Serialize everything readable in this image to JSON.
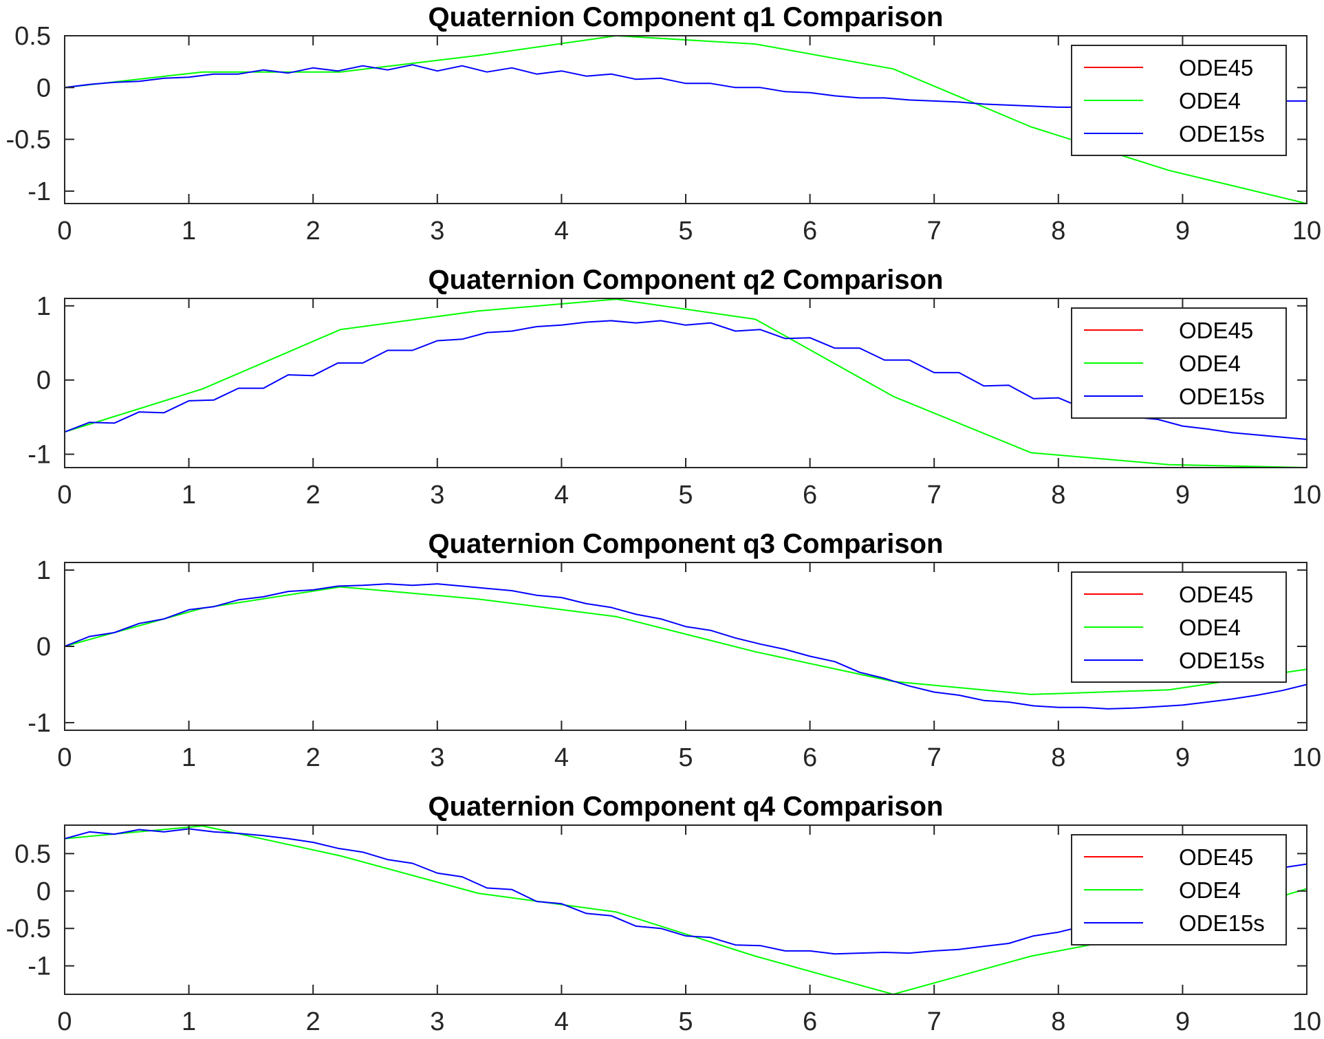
{
  "colors": {
    "ODE45": "#ff0000",
    "ODE4": "#00ff00",
    "ODE15s": "#0000ff"
  },
  "chart_data": [
    {
      "type": "line",
      "title": "Quaternion Component q1 Comparison",
      "xlim": [
        0,
        10
      ],
      "ylim": [
        -1.12,
        0.5
      ],
      "xticks": [
        "0",
        "1",
        "2",
        "3",
        "4",
        "5",
        "6",
        "7",
        "8",
        "9",
        "10"
      ],
      "yticks": [
        {
          "v": 0.5,
          "label": "0.5"
        },
        {
          "v": 0,
          "label": "0"
        },
        {
          "v": -0.5,
          "label": "-0.5"
        },
        {
          "v": -1,
          "label": "-1"
        }
      ],
      "legend": [
        "ODE45",
        "ODE4",
        "ODE15s"
      ],
      "legend_position": "top-right",
      "series": [
        {
          "name": "ODE45",
          "color": "#ff0000",
          "x": [],
          "y": []
        },
        {
          "name": "ODE4",
          "color": "#00ff00",
          "x": [
            0,
            1.11,
            2.22,
            3.33,
            4.44,
            5.56,
            6.67,
            7.78,
            8.89,
            10
          ],
          "y": [
            0,
            0.15,
            0.15,
            0.31,
            0.5,
            0.42,
            0.18,
            -0.38,
            -0.8,
            -1.12
          ]
        },
        {
          "name": "ODE15s",
          "color": "#0000ff",
          "x": [
            0,
            0.2,
            0.4,
            0.6,
            0.8,
            1.0,
            1.2,
            1.4,
            1.6,
            1.8,
            2.0,
            2.2,
            2.4,
            2.6,
            2.8,
            3.0,
            3.2,
            3.4,
            3.6,
            3.8,
            4.0,
            4.2,
            4.4,
            4.6,
            4.8,
            5.0,
            5.2,
            5.4,
            5.6,
            5.8,
            6.0,
            6.2,
            6.4,
            6.6,
            6.8,
            7.0,
            7.2,
            7.4,
            7.6,
            7.8,
            8.0,
            8.2,
            8.4,
            8.6,
            8.8,
            9.0,
            9.2,
            9.4,
            9.6,
            9.8,
            10.0
          ],
          "y": [
            0,
            0.03,
            0.05,
            0.06,
            0.09,
            0.1,
            0.13,
            0.13,
            0.17,
            0.14,
            0.19,
            0.16,
            0.21,
            0.17,
            0.22,
            0.16,
            0.21,
            0.15,
            0.19,
            0.13,
            0.16,
            0.11,
            0.13,
            0.08,
            0.09,
            0.04,
            0.04,
            0.0,
            0.0,
            -0.04,
            -0.05,
            -0.08,
            -0.1,
            -0.1,
            -0.12,
            -0.13,
            -0.14,
            -0.16,
            -0.17,
            -0.18,
            -0.19,
            -0.19,
            -0.18,
            -0.18,
            -0.17,
            -0.17,
            -0.16,
            -0.15,
            -0.15,
            -0.13,
            -0.13
          ]
        }
      ]
    },
    {
      "type": "line",
      "title": "Quaternion Component q2 Comparison",
      "xlim": [
        0,
        10
      ],
      "ylim": [
        -1.18,
        1.1
      ],
      "xticks": [
        "0",
        "1",
        "2",
        "3",
        "4",
        "5",
        "6",
        "7",
        "8",
        "9",
        "10"
      ],
      "yticks": [
        {
          "v": 1,
          "label": "1"
        },
        {
          "v": 0,
          "label": "0"
        },
        {
          "v": -1,
          "label": "-1"
        }
      ],
      "legend": [
        "ODE45",
        "ODE4",
        "ODE15s"
      ],
      "legend_position": "top-right",
      "series": [
        {
          "name": "ODE45",
          "color": "#ff0000",
          "x": [],
          "y": []
        },
        {
          "name": "ODE4",
          "color": "#00ff00",
          "x": [
            0,
            1.11,
            2.22,
            3.33,
            4.44,
            5.56,
            6.67,
            7.78,
            8.89,
            10
          ],
          "y": [
            -0.7,
            -0.12,
            0.68,
            0.93,
            1.09,
            0.82,
            -0.22,
            -0.98,
            -1.14,
            -1.18
          ]
        },
        {
          "name": "ODE15s",
          "color": "#0000ff",
          "x": [
            0,
            0.2,
            0.4,
            0.6,
            0.8,
            1.0,
            1.2,
            1.4,
            1.6,
            1.8,
            2.0,
            2.2,
            2.4,
            2.6,
            2.8,
            3.0,
            3.2,
            3.4,
            3.6,
            3.8,
            4.0,
            4.2,
            4.4,
            4.6,
            4.8,
            5.0,
            5.2,
            5.4,
            5.6,
            5.8,
            6.0,
            6.2,
            6.4,
            6.6,
            6.8,
            7.0,
            7.2,
            7.4,
            7.6,
            7.8,
            8.0,
            8.2,
            8.4,
            8.6,
            8.8,
            9.0,
            9.2,
            9.4,
            9.6,
            9.8,
            10.0
          ],
          "y": [
            -0.7,
            -0.57,
            -0.58,
            -0.43,
            -0.44,
            -0.28,
            -0.27,
            -0.11,
            -0.11,
            0.07,
            0.06,
            0.23,
            0.23,
            0.4,
            0.4,
            0.53,
            0.55,
            0.64,
            0.66,
            0.72,
            0.74,
            0.78,
            0.8,
            0.77,
            0.8,
            0.74,
            0.77,
            0.66,
            0.68,
            0.56,
            0.57,
            0.43,
            0.43,
            0.27,
            0.27,
            0.1,
            0.1,
            -0.08,
            -0.07,
            -0.25,
            -0.24,
            -0.38,
            -0.36,
            -0.5,
            -0.53,
            -0.62,
            -0.66,
            -0.71,
            -0.74,
            -0.77,
            -0.8
          ]
        }
      ]
    },
    {
      "type": "line",
      "title": "Quaternion Component q3 Comparison",
      "xlim": [
        0,
        10
      ],
      "ylim": [
        -1.1,
        1.1
      ],
      "xticks": [
        "0",
        "1",
        "2",
        "3",
        "4",
        "5",
        "6",
        "7",
        "8",
        "9",
        "10"
      ],
      "yticks": [
        {
          "v": 1,
          "label": "1"
        },
        {
          "v": 0,
          "label": "0"
        },
        {
          "v": -1,
          "label": "-1"
        }
      ],
      "legend": [
        "ODE45",
        "ODE4",
        "ODE15s"
      ],
      "legend_position": "top-right",
      "series": [
        {
          "name": "ODE45",
          "color": "#ff0000",
          "x": [],
          "y": []
        },
        {
          "name": "ODE4",
          "color": "#00ff00",
          "x": [
            0,
            1.11,
            2.22,
            3.33,
            4.44,
            5.56,
            6.67,
            7.78,
            8.89,
            10
          ],
          "y": [
            0,
            0.5,
            0.78,
            0.62,
            0.39,
            -0.07,
            -0.46,
            -0.63,
            -0.57,
            -0.3
          ]
        },
        {
          "name": "ODE15s",
          "color": "#0000ff",
          "x": [
            0,
            0.2,
            0.4,
            0.6,
            0.8,
            1.0,
            1.2,
            1.4,
            1.6,
            1.8,
            2.0,
            2.2,
            2.4,
            2.6,
            2.8,
            3.0,
            3.2,
            3.4,
            3.6,
            3.8,
            4.0,
            4.2,
            4.4,
            4.6,
            4.8,
            5.0,
            5.2,
            5.4,
            5.6,
            5.8,
            6.0,
            6.2,
            6.4,
            6.6,
            6.8,
            7.0,
            7.2,
            7.4,
            7.6,
            7.8,
            8.0,
            8.2,
            8.4,
            8.6,
            8.8,
            9.0,
            9.2,
            9.4,
            9.6,
            9.8,
            10.0
          ],
          "y": [
            0,
            0.13,
            0.18,
            0.3,
            0.36,
            0.48,
            0.52,
            0.61,
            0.65,
            0.72,
            0.74,
            0.79,
            0.8,
            0.82,
            0.8,
            0.82,
            0.79,
            0.76,
            0.73,
            0.67,
            0.64,
            0.56,
            0.51,
            0.42,
            0.36,
            0.26,
            0.21,
            0.11,
            0.03,
            -0.04,
            -0.13,
            -0.2,
            -0.34,
            -0.42,
            -0.52,
            -0.6,
            -0.64,
            -0.71,
            -0.73,
            -0.78,
            -0.8,
            -0.8,
            -0.82,
            -0.81,
            -0.79,
            -0.77,
            -0.73,
            -0.69,
            -0.64,
            -0.58,
            -0.5
          ]
        }
      ]
    },
    {
      "type": "line",
      "title": "Quaternion Component q4 Comparison",
      "xlim": [
        0,
        10
      ],
      "ylim": [
        -1.38,
        0.88
      ],
      "xticks": [
        "0",
        "1",
        "2",
        "3",
        "4",
        "5",
        "6",
        "7",
        "8",
        "9",
        "10"
      ],
      "yticks": [
        {
          "v": 0.5,
          "label": "0.5"
        },
        {
          "v": 0,
          "label": "0"
        },
        {
          "v": -0.5,
          "label": "-0.5"
        },
        {
          "v": -1,
          "label": "-1"
        }
      ],
      "legend": [
        "ODE45",
        "ODE4",
        "ODE15s"
      ],
      "legend_position": "top-right",
      "series": [
        {
          "name": "ODE45",
          "color": "#ff0000",
          "x": [],
          "y": []
        },
        {
          "name": "ODE4",
          "color": "#00ff00",
          "x": [
            0,
            1.11,
            2.22,
            3.33,
            4.44,
            5.56,
            6.67,
            7.78,
            8.89,
            10
          ],
          "y": [
            0.7,
            0.87,
            0.47,
            -0.03,
            -0.28,
            -0.87,
            -1.38,
            -0.87,
            -0.52,
            0.03
          ]
        },
        {
          "name": "ODE15s",
          "color": "#0000ff",
          "x": [
            0,
            0.2,
            0.4,
            0.6,
            0.8,
            1.0,
            1.2,
            1.4,
            1.6,
            1.8,
            2.0,
            2.2,
            2.4,
            2.6,
            2.8,
            3.0,
            3.2,
            3.4,
            3.6,
            3.8,
            4.0,
            4.2,
            4.4,
            4.6,
            4.8,
            5.0,
            5.2,
            5.4,
            5.6,
            5.8,
            6.0,
            6.2,
            6.4,
            6.6,
            6.8,
            7.0,
            7.2,
            7.4,
            7.6,
            7.8,
            8.0,
            8.2,
            8.4,
            8.6,
            8.8,
            9.0,
            9.2,
            9.4,
            9.6,
            9.8,
            10.0
          ],
          "y": [
            0.7,
            0.79,
            0.76,
            0.82,
            0.79,
            0.83,
            0.79,
            0.77,
            0.74,
            0.7,
            0.65,
            0.57,
            0.52,
            0.42,
            0.37,
            0.24,
            0.19,
            0.04,
            0.02,
            -0.14,
            -0.17,
            -0.3,
            -0.33,
            -0.47,
            -0.5,
            -0.6,
            -0.62,
            -0.72,
            -0.73,
            -0.8,
            -0.8,
            -0.84,
            -0.83,
            -0.82,
            -0.83,
            -0.8,
            -0.78,
            -0.74,
            -0.7,
            -0.6,
            -0.55,
            -0.47,
            -0.37,
            -0.28,
            -0.16,
            -0.06,
            0.04,
            0.13,
            0.22,
            0.31,
            0.36
          ]
        }
      ]
    }
  ]
}
